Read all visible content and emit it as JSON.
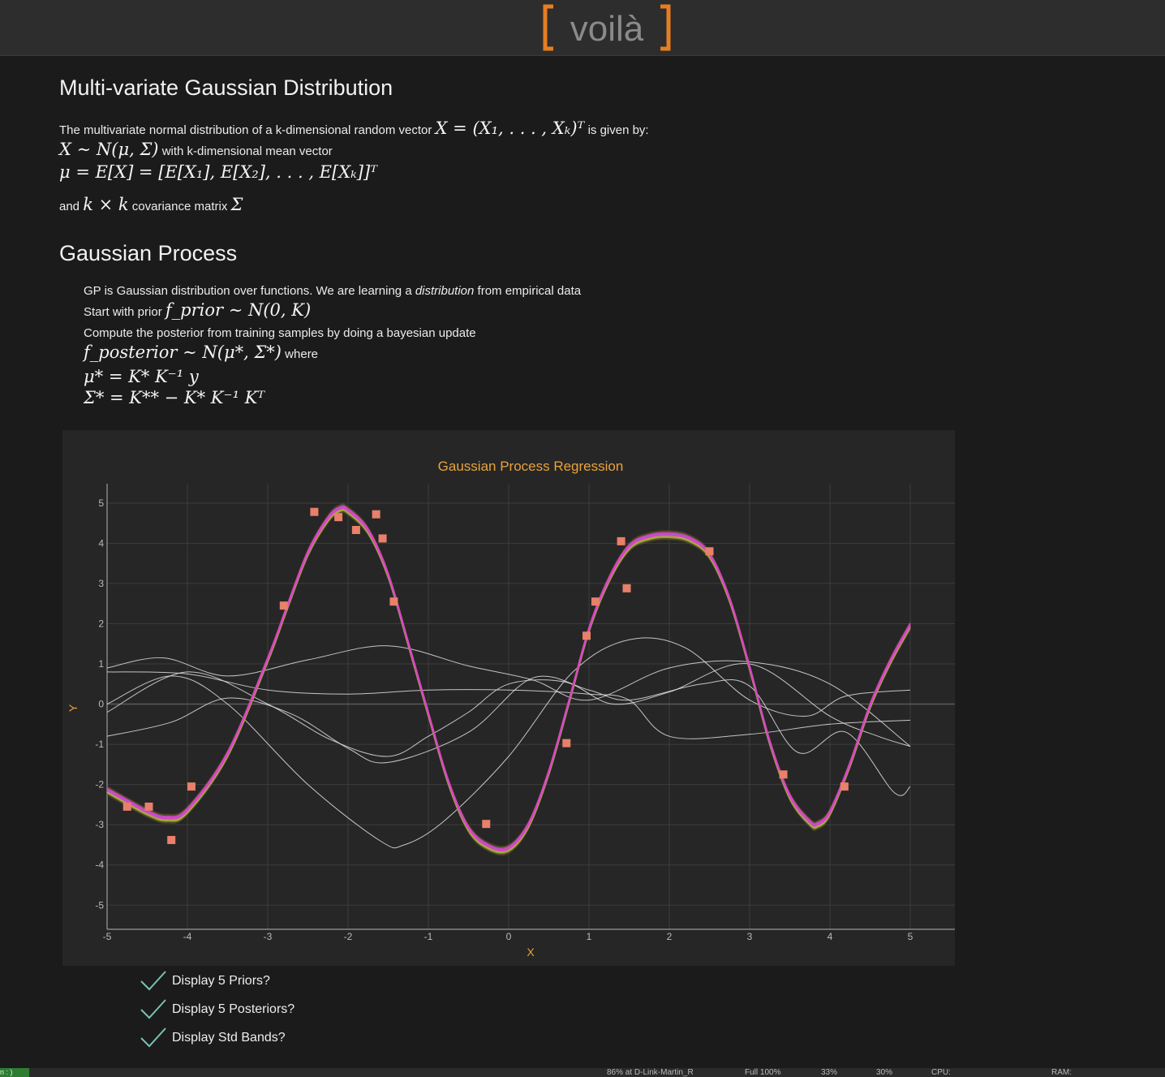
{
  "header": {
    "logo_text": "[voilà]",
    "accent_color": "#e67e22"
  },
  "sections": {
    "mvg_title": "Multi-variate Gaussian Distribution",
    "mvg_line1_pre": "The multivariate normal distribution of a k-dimensional random vector",
    "mvg_line1_math": "X = (X₁, . . . , Xₖ)ᵀ",
    "mvg_line1_post": "is given by:",
    "mvg_line2_math": "X ∼ N(μ, Σ)",
    "mvg_line2_post": "with k-dimensional mean vector",
    "mvg_line3_math": "μ = E[X] = [E[X₁], E[X₂], . . . , E[Xₖ]]ᵀ",
    "mvg_line4_pre": "and",
    "mvg_line4_math": "k × k",
    "mvg_line4_post": "covariance matrix",
    "mvg_line4_sigma": "Σ",
    "gp_title": "Gaussian Process",
    "gp_line1_pre": "GP is Gaussian distribution over functions. We are learning a",
    "gp_line1_em": "distribution",
    "gp_line1_post": "from empirical data",
    "gp_line2_pre": "Start with prior",
    "gp_line2_math": "f_prior ∼ N(0, K)",
    "gp_line3": "Compute the posterior from training samples by doing a bayesian update",
    "gp_line4_math": "f_posterior ∼ N(μ*, Σ*)",
    "gp_line4_post": "where",
    "gp_line5_math": "μ* = K* K⁻¹ y",
    "gp_line6_math": "Σ* = K** − K* K⁻¹ Kᵀ"
  },
  "chart_data": {
    "type": "line",
    "title": "Gaussian Process Regression",
    "xlabel": "X",
    "ylabel": "Y",
    "xlim": [
      -5,
      5
    ],
    "ylim": [
      -5.6,
      5.4
    ],
    "x_ticks": [
      -5,
      -4,
      -3,
      -2,
      -1,
      0,
      1,
      2,
      3,
      4,
      5
    ],
    "y_ticks": [
      -5,
      -4,
      -3,
      -2,
      -1,
      0,
      1,
      2,
      3,
      4,
      5
    ],
    "colors": {
      "title": "#e8a33d",
      "axis_label": "#e8a33d",
      "points": "#e8806a",
      "prior": "#e0e0e0",
      "posterior": "#d946c4",
      "band": "#6b5a2a",
      "grid": "#3c3c3c",
      "tick": "#bbbbbb"
    },
    "training_points": [
      {
        "x": -4.75,
        "y": -2.55
      },
      {
        "x": -4.48,
        "y": -2.55
      },
      {
        "x": -4.2,
        "y": -3.38
      },
      {
        "x": -3.95,
        "y": -2.05
      },
      {
        "x": -2.8,
        "y": 2.45
      },
      {
        "x": -2.42,
        "y": 4.78
      },
      {
        "x": -2.12,
        "y": 4.65
      },
      {
        "x": -1.9,
        "y": 4.33
      },
      {
        "x": -1.65,
        "y": 4.72
      },
      {
        "x": -1.57,
        "y": 4.12
      },
      {
        "x": -1.43,
        "y": 2.55
      },
      {
        "x": -0.28,
        "y": -2.98
      },
      {
        "x": 0.72,
        "y": -0.97
      },
      {
        "x": 0.97,
        "y": 1.7
      },
      {
        "x": 1.08,
        "y": 2.55
      },
      {
        "x": 1.4,
        "y": 4.05
      },
      {
        "x": 1.47,
        "y": 2.88
      },
      {
        "x": 2.5,
        "y": 3.8
      },
      {
        "x": 3.42,
        "y": -1.75
      },
      {
        "x": 4.18,
        "y": -2.05
      }
    ],
    "posterior_mean": {
      "x": [
        -5,
        -4.5,
        -4.25,
        -4,
        -3.5,
        -3,
        -2.75,
        -2.5,
        -2.25,
        -2.1,
        -2,
        -1.75,
        -1.5,
        -1.25,
        -1,
        -0.75,
        -0.5,
        -0.25,
        0,
        0.25,
        0.5,
        0.75,
        1,
        1.25,
        1.5,
        1.75,
        2,
        2.25,
        2.5,
        2.75,
        3,
        3.25,
        3.5,
        3.75,
        3.85,
        4,
        4.25,
        4.5,
        4.75,
        5
      ],
      "y": [
        -2.15,
        -2.7,
        -2.85,
        -2.65,
        -1.25,
        1.1,
        2.45,
        3.75,
        4.6,
        4.85,
        4.8,
        4.3,
        3.2,
        1.5,
        -0.25,
        -1.95,
        -3.1,
        -3.55,
        -3.6,
        -3.0,
        -1.7,
        0.05,
        1.85,
        3.1,
        3.9,
        4.15,
        4.2,
        4.1,
        3.7,
        2.6,
        0.9,
        -0.95,
        -2.3,
        -2.95,
        -3.0,
        -2.7,
        -1.5,
        -0.05,
        1.05,
        1.95
      ]
    },
    "prior_samples": [
      {
        "x": [
          -5,
          -4.3,
          -3.5,
          -2.5,
          -1.5,
          -0.5,
          0.3,
          1,
          2,
          3,
          4,
          5
        ],
        "y": [
          0.9,
          1.15,
          0.7,
          1.1,
          1.45,
          0.95,
          0.6,
          0.1,
          0.9,
          1.05,
          0.5,
          -1.05
        ]
      },
      {
        "x": [
          -5,
          -4,
          -3,
          -2,
          -1,
          0,
          1,
          1.5,
          2,
          3,
          4,
          5
        ],
        "y": [
          0.8,
          0.75,
          0.35,
          0.25,
          0.35,
          0.35,
          0.25,
          0.1,
          -0.8,
          -0.75,
          -0.5,
          -0.4
        ]
      },
      {
        "x": [
          -5,
          -4,
          -3,
          -2.2,
          -1.5,
          -1,
          -0.5,
          0,
          0.7,
          1.3,
          2,
          3,
          4,
          4.6,
          5
        ],
        "y": [
          -0.2,
          0.8,
          0.0,
          -0.9,
          -1.3,
          -0.8,
          -0.2,
          0.5,
          0.55,
          0.0,
          0.3,
          1.0,
          -0.3,
          -0.8,
          -1.05
        ]
      },
      {
        "x": [
          -5,
          -4.2,
          -3.5,
          -2.7,
          -2,
          -1.5,
          -0.5,
          0.3,
          1,
          1.5,
          2.4,
          3,
          3.6,
          4.2,
          4.8,
          5
        ],
        "y": [
          -0.8,
          -0.45,
          0.15,
          -0.25,
          -1.1,
          -1.45,
          -0.7,
          0.65,
          0.35,
          0.1,
          0.5,
          0.45,
          -1.2,
          -0.7,
          -2.2,
          -2.05
        ]
      },
      {
        "x": [
          -5,
          -4.2,
          -3.5,
          -2.5,
          -1.6,
          -1.3,
          -0.8,
          0,
          0.8,
          1.5,
          2.2,
          3,
          3.7,
          4.2,
          5
        ],
        "y": [
          0.0,
          0.7,
          0.0,
          -2.0,
          -3.4,
          -3.5,
          -2.9,
          -1.3,
          0.8,
          1.6,
          1.4,
          0.1,
          -0.3,
          0.2,
          0.35
        ]
      }
    ],
    "std_band_width": 0.12
  },
  "controls": {
    "cb_priors": "Display 5 Priors?",
    "cb_posteriors": "Display 5 Posteriors?",
    "cb_bands": "Display Std Bands?"
  },
  "statusbar": {
    "ws_label": "n : )",
    "wifi": "86% at D-Link-Martin_R",
    "battery": "Full 100%",
    "volume": "33%",
    "brightness": "30%",
    "cpu": "CPU:",
    "ram": "RAM:"
  }
}
